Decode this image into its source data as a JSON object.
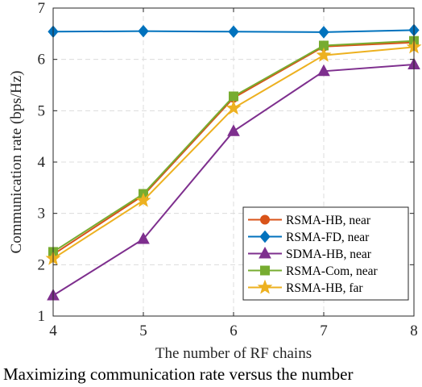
{
  "chart_data": {
    "type": "line",
    "title": "",
    "xlabel": "The number of RF chains",
    "ylabel": "Communication rate (bps/Hz)",
    "x": [
      4,
      5,
      6,
      7,
      8
    ],
    "xlim": [
      4,
      8
    ],
    "ylim": [
      1,
      7
    ],
    "xticks": [
      "4",
      "5",
      "6",
      "7",
      "8"
    ],
    "yticks": [
      "1",
      "2",
      "3",
      "4",
      "5",
      "6",
      "7"
    ],
    "grid": true,
    "legend_position": "bottom-right",
    "series": [
      {
        "name": "RSMA-HB, near",
        "values": [
          2.2,
          3.35,
          5.25,
          6.25,
          6.33
        ],
        "color": "#D95319",
        "marker": "circle"
      },
      {
        "name": "RSMA-FD, near",
        "values": [
          6.54,
          6.55,
          6.54,
          6.53,
          6.57
        ],
        "color": "#0072BD",
        "marker": "diamond"
      },
      {
        "name": "SDMA-HB, near",
        "values": [
          1.4,
          2.5,
          4.6,
          5.77,
          5.9
        ],
        "color": "#7E2F8E",
        "marker": "triangle"
      },
      {
        "name": "RSMA-Com, near",
        "values": [
          2.25,
          3.38,
          5.28,
          6.27,
          6.36
        ],
        "color": "#77AC30",
        "marker": "square"
      },
      {
        "name": "RSMA-HB, far",
        "values": [
          2.12,
          3.25,
          5.05,
          6.08,
          6.24
        ],
        "color": "#EDB120",
        "marker": "star"
      }
    ]
  },
  "caption": "Maximizing communication rate versus the number"
}
